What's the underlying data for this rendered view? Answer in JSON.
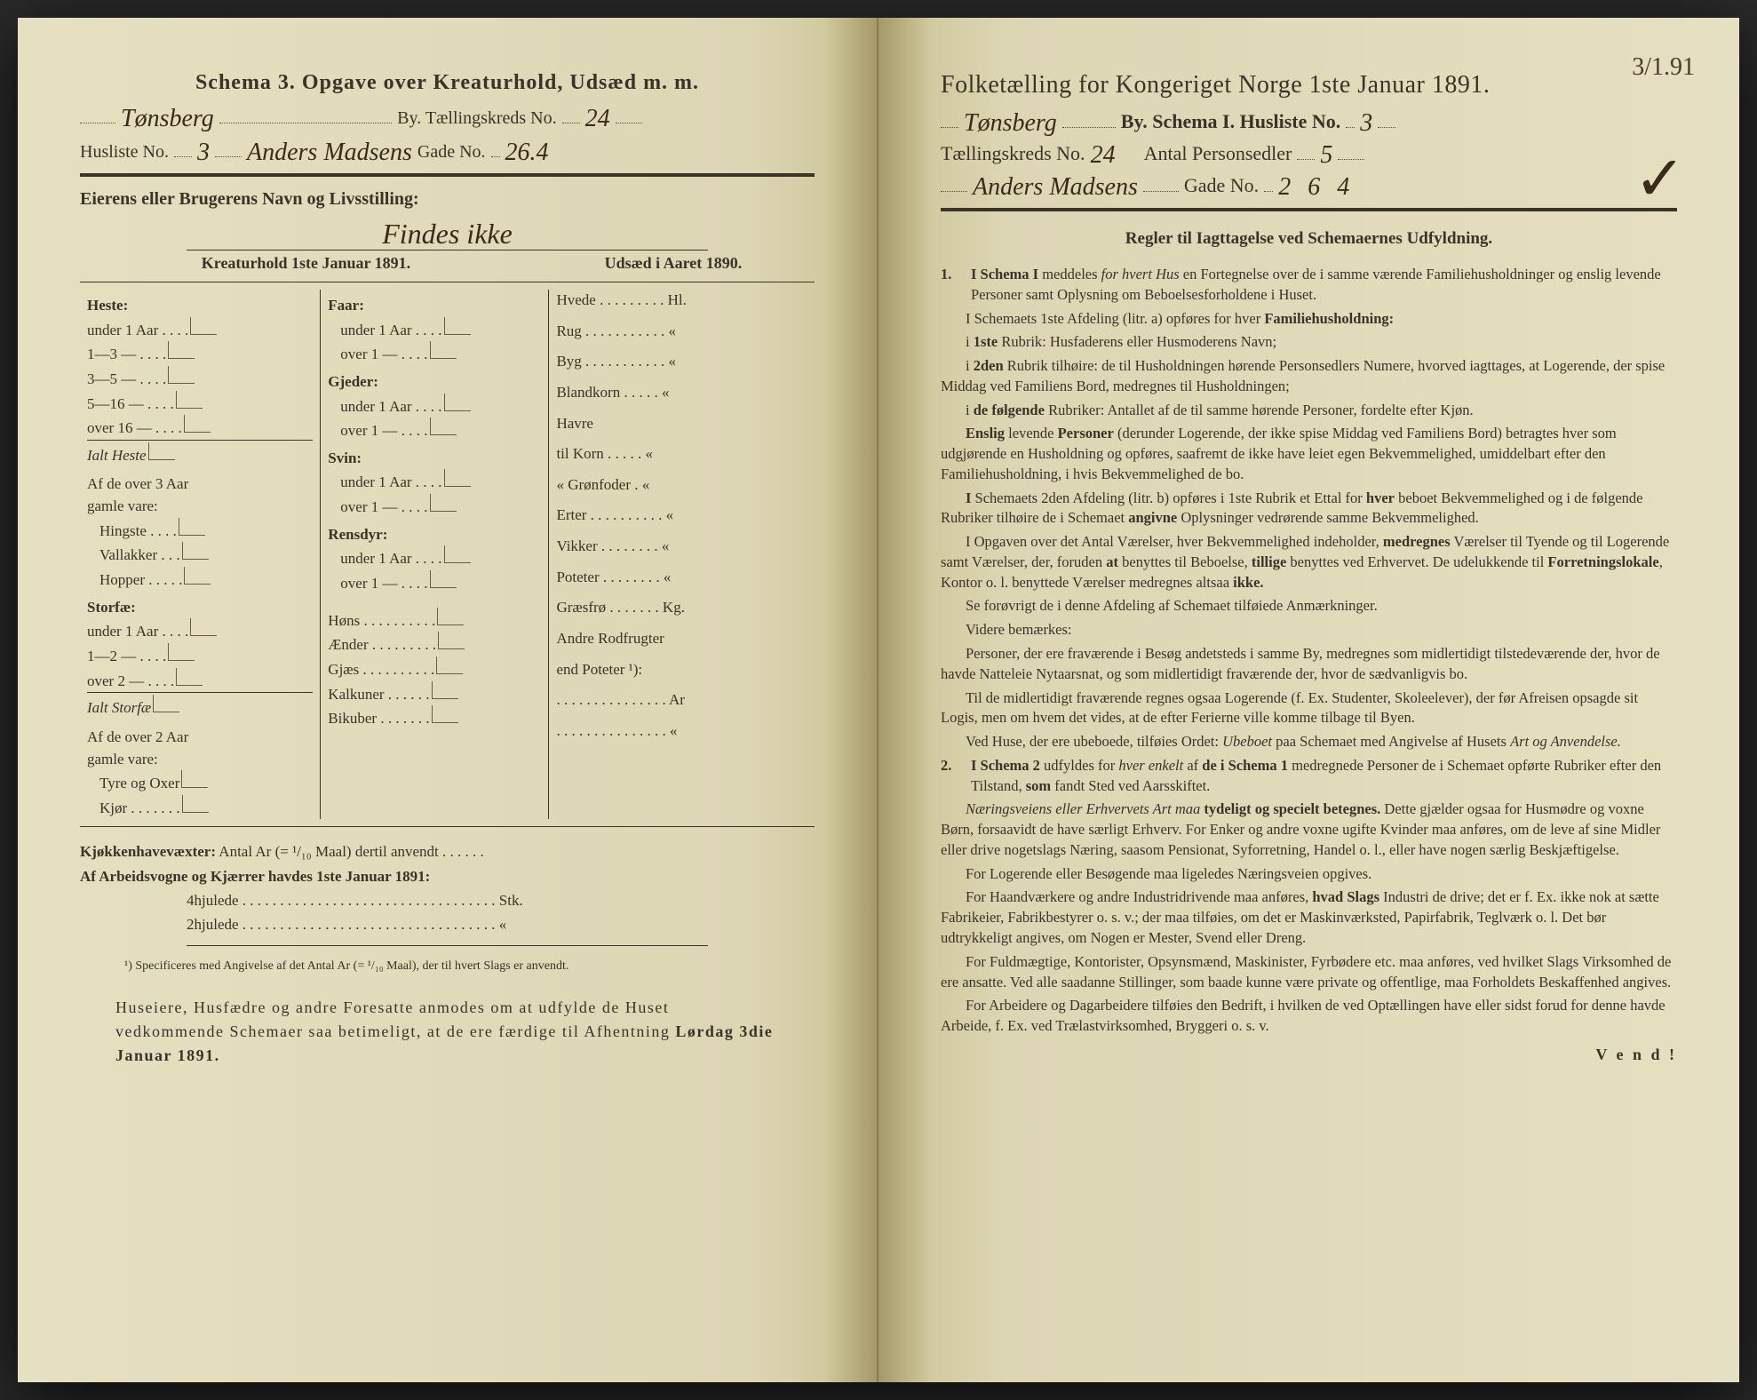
{
  "colors": {
    "paper": "#e2dcc0",
    "ink": "#3a3328",
    "handwriting": "#3a2a1a"
  },
  "left": {
    "header": "Schema 3.   Opgave over Kreaturhold, Udsæd m. m.",
    "by_hand": "Tønsberg",
    "by_label": "By.  Tællingskreds No.",
    "kreds_no": "24",
    "husliste_label": "Husliste No.",
    "husliste_no": "3",
    "gade_hand": "Anders Madsens",
    "gade_label": "Gade No.",
    "gade_no": "26.4",
    "owner_label": "Eierens eller Brugerens Navn og Livsstilling:",
    "owner_hand": "Findes ikke",
    "col_kreatur": "Kreaturhold 1ste Januar 1891.",
    "col_udsad": "Udsæd i Aaret 1890.",
    "c1": {
      "heste": "Heste:",
      "h_rows": [
        "under 1 Aar . . . .",
        "1—3   —  . . . .",
        "3—5   —  . . . .",
        "5—16  —  . . . .",
        "over 16 —  . . . ."
      ],
      "h_sum": "Ialt Heste",
      "h_note1": "Af de over 3 Aar",
      "h_note2": "gamle vare:",
      "h_sub": [
        "Hingste . . . .",
        "Vallakker . . .",
        "Hopper . . . . ."
      ],
      "storfe": "Storfæ:",
      "s_rows": [
        "under 1 Aar . . . .",
        "1—2   —  . . . .",
        "over 2   —  . . . ."
      ],
      "s_sum": "Ialt Storfæ",
      "s_note1": "Af de over 2 Aar",
      "s_note2": "gamle vare:",
      "s_sub": [
        "Tyre og Oxer",
        "Kjør . . . . . . ."
      ]
    },
    "c2": {
      "faar": "Faar:",
      "faar_rows": [
        "under 1 Aar . . . .",
        "over 1   —  . . . ."
      ],
      "gjeder": "Gjeder:",
      "gjeder_rows": [
        "under 1 Aar . . . .",
        "over 1   —  . . . ."
      ],
      "svin": "Svin:",
      "svin_rows": [
        "under 1 Aar . . . .",
        "over 1   —  . . . ."
      ],
      "rensdyr": "Rensdyr:",
      "rens_rows": [
        "under 1 Aar . . . .",
        "over 1   —  . . . ."
      ],
      "other": [
        "Høns . . . . . . . . . .",
        "Ænder . . . . . . . . .",
        "Gjæs . . . . . . . . . .",
        "Kalkuner . . . . . .",
        "Bikuber . . . . . . ."
      ]
    },
    "c3": {
      "rows": [
        "Hvede . . . . . . . . . Hl.",
        "Rug . . . . . . . . . . .  «",
        "Byg . . . . . . . . . . .  «",
        "Blandkorn . . . . .  «",
        "Havre",
        "   til Korn . . . . .  «",
        "   «  Grønfoder .  «",
        "Erter . . . . . . . . . .  «",
        "Vikker . . . . . . . .  «",
        "Poteter . . . . . . . .  «",
        "Græsfrø . . . . . . . Kg.",
        "Andre Rodfrugter",
        "   end Poteter ¹):",
        ". . . . . . . . . . . . . . .  Ar",
        ". . . . . . . . . . . . . . .   «"
      ]
    },
    "kjokken": "Kjøkkenhavevæxter:",
    "kjokken_txt": "Antal Ar (= ¹/₁₀ Maal) dertil anvendt . . . . . .",
    "arbeid": "Af Arbeidsvogne og Kjærrer havdes 1ste Januar 1891:",
    "a4": "4hjulede . . . . . . . . . . . . . . . . . . . . . . . . . . . . . . . . . . Stk.",
    "a2": "2hjulede . . . . . . . . . . . . . . . . . . . . . . . . . . . . . . . . . .  «",
    "footnote": "¹) Specificeres med Angivelse af det Antal Ar (= ¹/₁₀ Maal), der til hvert Slags er anvendt.",
    "instruction": "Huseiere, Husfædre og andre Foresatte anmodes om at udfylde de Huset vedkommende Schemaer saa betimeligt, at de ere færdige til Afhentning Lørdag 3die Januar 1891.",
    "instruction_bold": "Lørdag 3die Januar 1891."
  },
  "right": {
    "corner": "3/1.91",
    "title": "Folketælling for Kongeriget Norge 1ste Januar 1891.",
    "l1_hand": "Tønsberg",
    "l1_txt": "By.   Schema I.   Husliste No.",
    "l1_no": "3",
    "l2a": "Tællingskreds No.",
    "l2a_no": "24",
    "l2b": "Antal Personsedler",
    "l2b_no": "5",
    "l3_hand": "Anders Madsens",
    "l3_txt": "Gade No.",
    "l3_no": "2 6 4",
    "regler": "Regler til Iagttagelse ved Schemaernes Udfyldning.",
    "vend": "V e n d !",
    "paras": [
      {
        "n": "1.",
        "html": "<b>I Schema I</b> meddeles <i>for hvert Hus</i> en Fortegnelse over de i samme værende Familiehusholdninger og enslig levende Personer samt Oplysning om Beboelsesforholdene i Huset."
      },
      {
        "html": "I Schemaets 1ste Afdeling (litr. a) opføres for hver <b>Familiehusholdning:</b>"
      },
      {
        "html": "i <b>1ste</b> Rubrik: Husfaderens eller Husmoderens Navn;"
      },
      {
        "html": "i <b>2den</b> Rubrik tilhøire: de til Husholdningen hørende Personsedlers Numere, hvorved iagttages, at Logerende, der spise Middag ved Familiens Bord, medregnes til Husholdningen;"
      },
      {
        "html": "i <b>de følgende</b> Rubriker: Antallet af de til samme hørende Personer, fordelte efter Kjøn."
      },
      {
        "html": "<b>Enslig</b> levende <b>Personer</b> (derunder Logerende, der ikke spise Middag ved Familiens Bord) betragtes hver som udgjørende en Husholdning og opføres, saafremt de ikke have leiet egen Bekvemmelighed, umiddelbart efter den Familiehusholdning, i hvis Bekvemmelighed de bo."
      },
      {
        "html": "<b>I</b> Schemaets 2den Afdeling (litr. b) opføres i 1ste Rubrik et Ettal for <b>hver</b> beboet Bekvemmelighed og i de følgende Rubriker tilhøire de i Schemaet <b>angivne</b> Oplysninger vedrørende samme Bekvemmelighed."
      },
      {
        "html": "I Opgaven over det Antal Værelser, hver Bekvemmelighed indeholder, <b>medregnes</b> Værelser til Tyende og til Logerende samt Værelser, der, foruden <b>at</b> benyttes til Beboelse, <b>tillige</b> benyttes ved Erhvervet. De udelukkende til <b>Forretningslokale</b>, Kontor o. l. benyttede Værelser medregnes altsaa <b>ikke.</b>"
      },
      {
        "html": "Se forøvrigt de i denne Afdeling af Schemaet tilføiede Anmærkninger."
      },
      {
        "html": "Videre bemærkes:"
      },
      {
        "html": "Personer, der ere fraværende i Besøg andetsteds i samme By, medregnes som midlertidigt tilstedeværende der, hvor de havde Natteleie Nytaarsnat, og som midlertidigt fraværende der, hvor de sædvanligvis bo."
      },
      {
        "html": "Til de midlertidigt fraværende regnes ogsaa Logerende (f. Ex. Studenter, Skoleelever), der før Afreisen opsagde sit Logis, men om hvem det vides, at de efter Ferierne ville komme tilbage til Byen."
      },
      {
        "html": "Ved Huse, der ere ubeboede, tilføies Ordet: <i>Ubeboet</i> paa Schemaet med Angivelse af Husets <i>Art og Anvendelse.</i>"
      },
      {
        "n": "2.",
        "html": "<b>I Schema 2</b> udfyldes for <i>hver enkelt</i> af <b>de i Schema 1</b> medregnede Personer de i Schemaet opførte Rubriker efter den Tilstand, <b>som</b> fandt Sted ved Aarsskiftet."
      },
      {
        "html": "<i>Næringsveiens eller Erhvervets Art maa</i> <b>tydeligt og specielt betegnes.</b> Dette gjælder ogsaa for Husmødre og voxne Børn, forsaavidt de have særligt Erhverv. For Enker og andre voxne ugifte Kvinder maa anføres, om de leve af sine Midler eller drive nogetslags Næring, saasom Pensionat, Syforretning, Handel o. l., eller have nogen særlig Beskjæftigelse."
      },
      {
        "html": "For Logerende eller Besøgende maa ligeledes Næringsveien opgives."
      },
      {
        "html": "For Haandværkere og andre Industridrivende maa anføres, <b>hvad Slags</b> Industri de drive; det er f. Ex. ikke nok at sætte Fabrikeier, Fabrikbestyrer o. s. v.; der maa tilføies, om det er Maskinværksted, Papirfabrik, Teglværk o. l. Det bør udtrykkeligt angives, om Nogen er Mester, Svend eller Dreng."
      },
      {
        "html": "For Fuldmægtige, Kontorister, Opsynsmænd, Maskinister, Fyrbødere etc. maa anføres, ved hvilket Slags Virksomhed de ere ansatte. Ved alle saadanne Stillinger, som baade kunne være private og offentlige, maa Forholdets Beskaffenhed angives."
      },
      {
        "html": "For Arbeidere og Dagarbeidere tilføies den Bedrift, i hvilken de ved Optællingen have eller sidst forud for denne havde Arbeide, f. Ex. ved Trælastvirksomhed, Bryggeri o. s. v."
      }
    ]
  }
}
